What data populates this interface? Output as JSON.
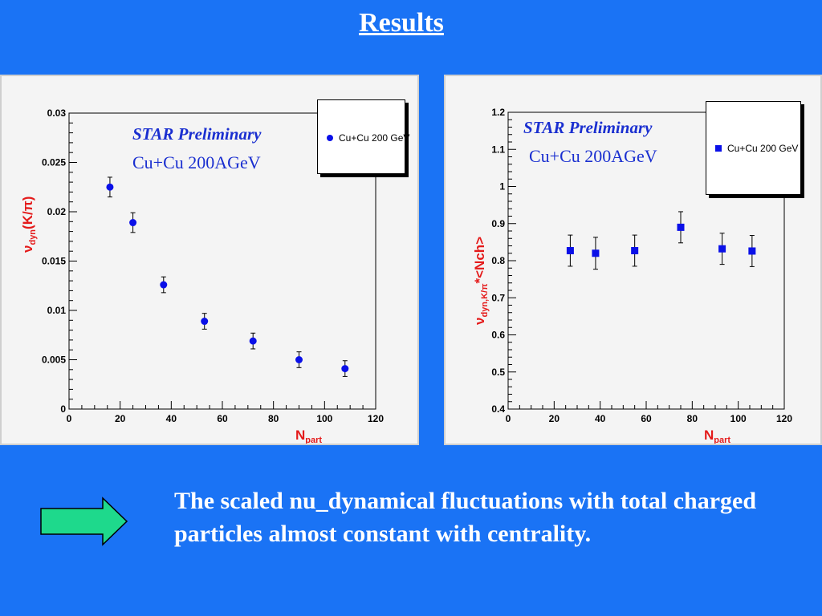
{
  "slide": {
    "title": "Results",
    "conclusion": "The scaled nu_dynamical fluctuations with total charged particles almost constant with centrality.",
    "colors": {
      "background": "#1a73f5",
      "marker": "#0a10e8",
      "axis_label": "#e41a1a",
      "arrow_fill": "#1ed98c"
    }
  },
  "chart_data": [
    {
      "type": "scatter",
      "annotation": "STAR Preliminary",
      "system": "Cu+Cu 200AGeV",
      "legend_entry": "Cu+Cu 200 GeV",
      "legend_position": "top-right",
      "marker": "circle",
      "xlabel_main": "N",
      "xlabel_sub": "part",
      "ylabel_main": "ν",
      "ylabel_sub": "dyn",
      "ylabel_tail": "(K/π)",
      "xlim": [
        0,
        120
      ],
      "ylim": [
        0,
        0.03
      ],
      "xticks": [
        "0",
        "20",
        "40",
        "60",
        "80",
        "100",
        "120"
      ],
      "yticks": [
        "0",
        "0.005",
        "0.01",
        "0.015",
        "0.02",
        "0.025",
        "0.03"
      ],
      "grid": false,
      "points": [
        {
          "x": 16,
          "y": 0.0225,
          "err": 0.001
        },
        {
          "x": 25,
          "y": 0.0189,
          "err": 0.001
        },
        {
          "x": 37,
          "y": 0.0126,
          "err": 0.0008
        },
        {
          "x": 53,
          "y": 0.0089,
          "err": 0.0008
        },
        {
          "x": 72,
          "y": 0.0069,
          "err": 0.0008
        },
        {
          "x": 90,
          "y": 0.005,
          "err": 0.0008
        },
        {
          "x": 108,
          "y": 0.0041,
          "err": 0.0008
        }
      ]
    },
    {
      "type": "scatter",
      "annotation": "STAR Preliminary",
      "system": "Cu+Cu 200AGeV",
      "legend_entry": "Cu+Cu 200 GeV",
      "legend_position": "top-right",
      "marker": "square",
      "xlabel_main": "N",
      "xlabel_sub": "part",
      "ylabel_main": "ν",
      "ylabel_sub": "dyn,K/π",
      "ylabel_tail": "*<Nch>",
      "xlim": [
        0,
        120
      ],
      "ylim": [
        0.4,
        1.2
      ],
      "xticks": [
        "0",
        "20",
        "40",
        "60",
        "80",
        "100",
        "120"
      ],
      "yticks": [
        "0.4",
        "0.5",
        "0.6",
        "0.7",
        "0.8",
        "0.9",
        "1",
        "1.1",
        "1.2"
      ],
      "grid": false,
      "points": [
        {
          "x": 27,
          "y": 0.827,
          "err": 0.042
        },
        {
          "x": 38,
          "y": 0.82,
          "err": 0.043
        },
        {
          "x": 55,
          "y": 0.827,
          "err": 0.042
        },
        {
          "x": 75,
          "y": 0.89,
          "err": 0.042
        },
        {
          "x": 93,
          "y": 0.832,
          "err": 0.042
        },
        {
          "x": 106,
          "y": 0.826,
          "err": 0.042
        }
      ]
    }
  ]
}
